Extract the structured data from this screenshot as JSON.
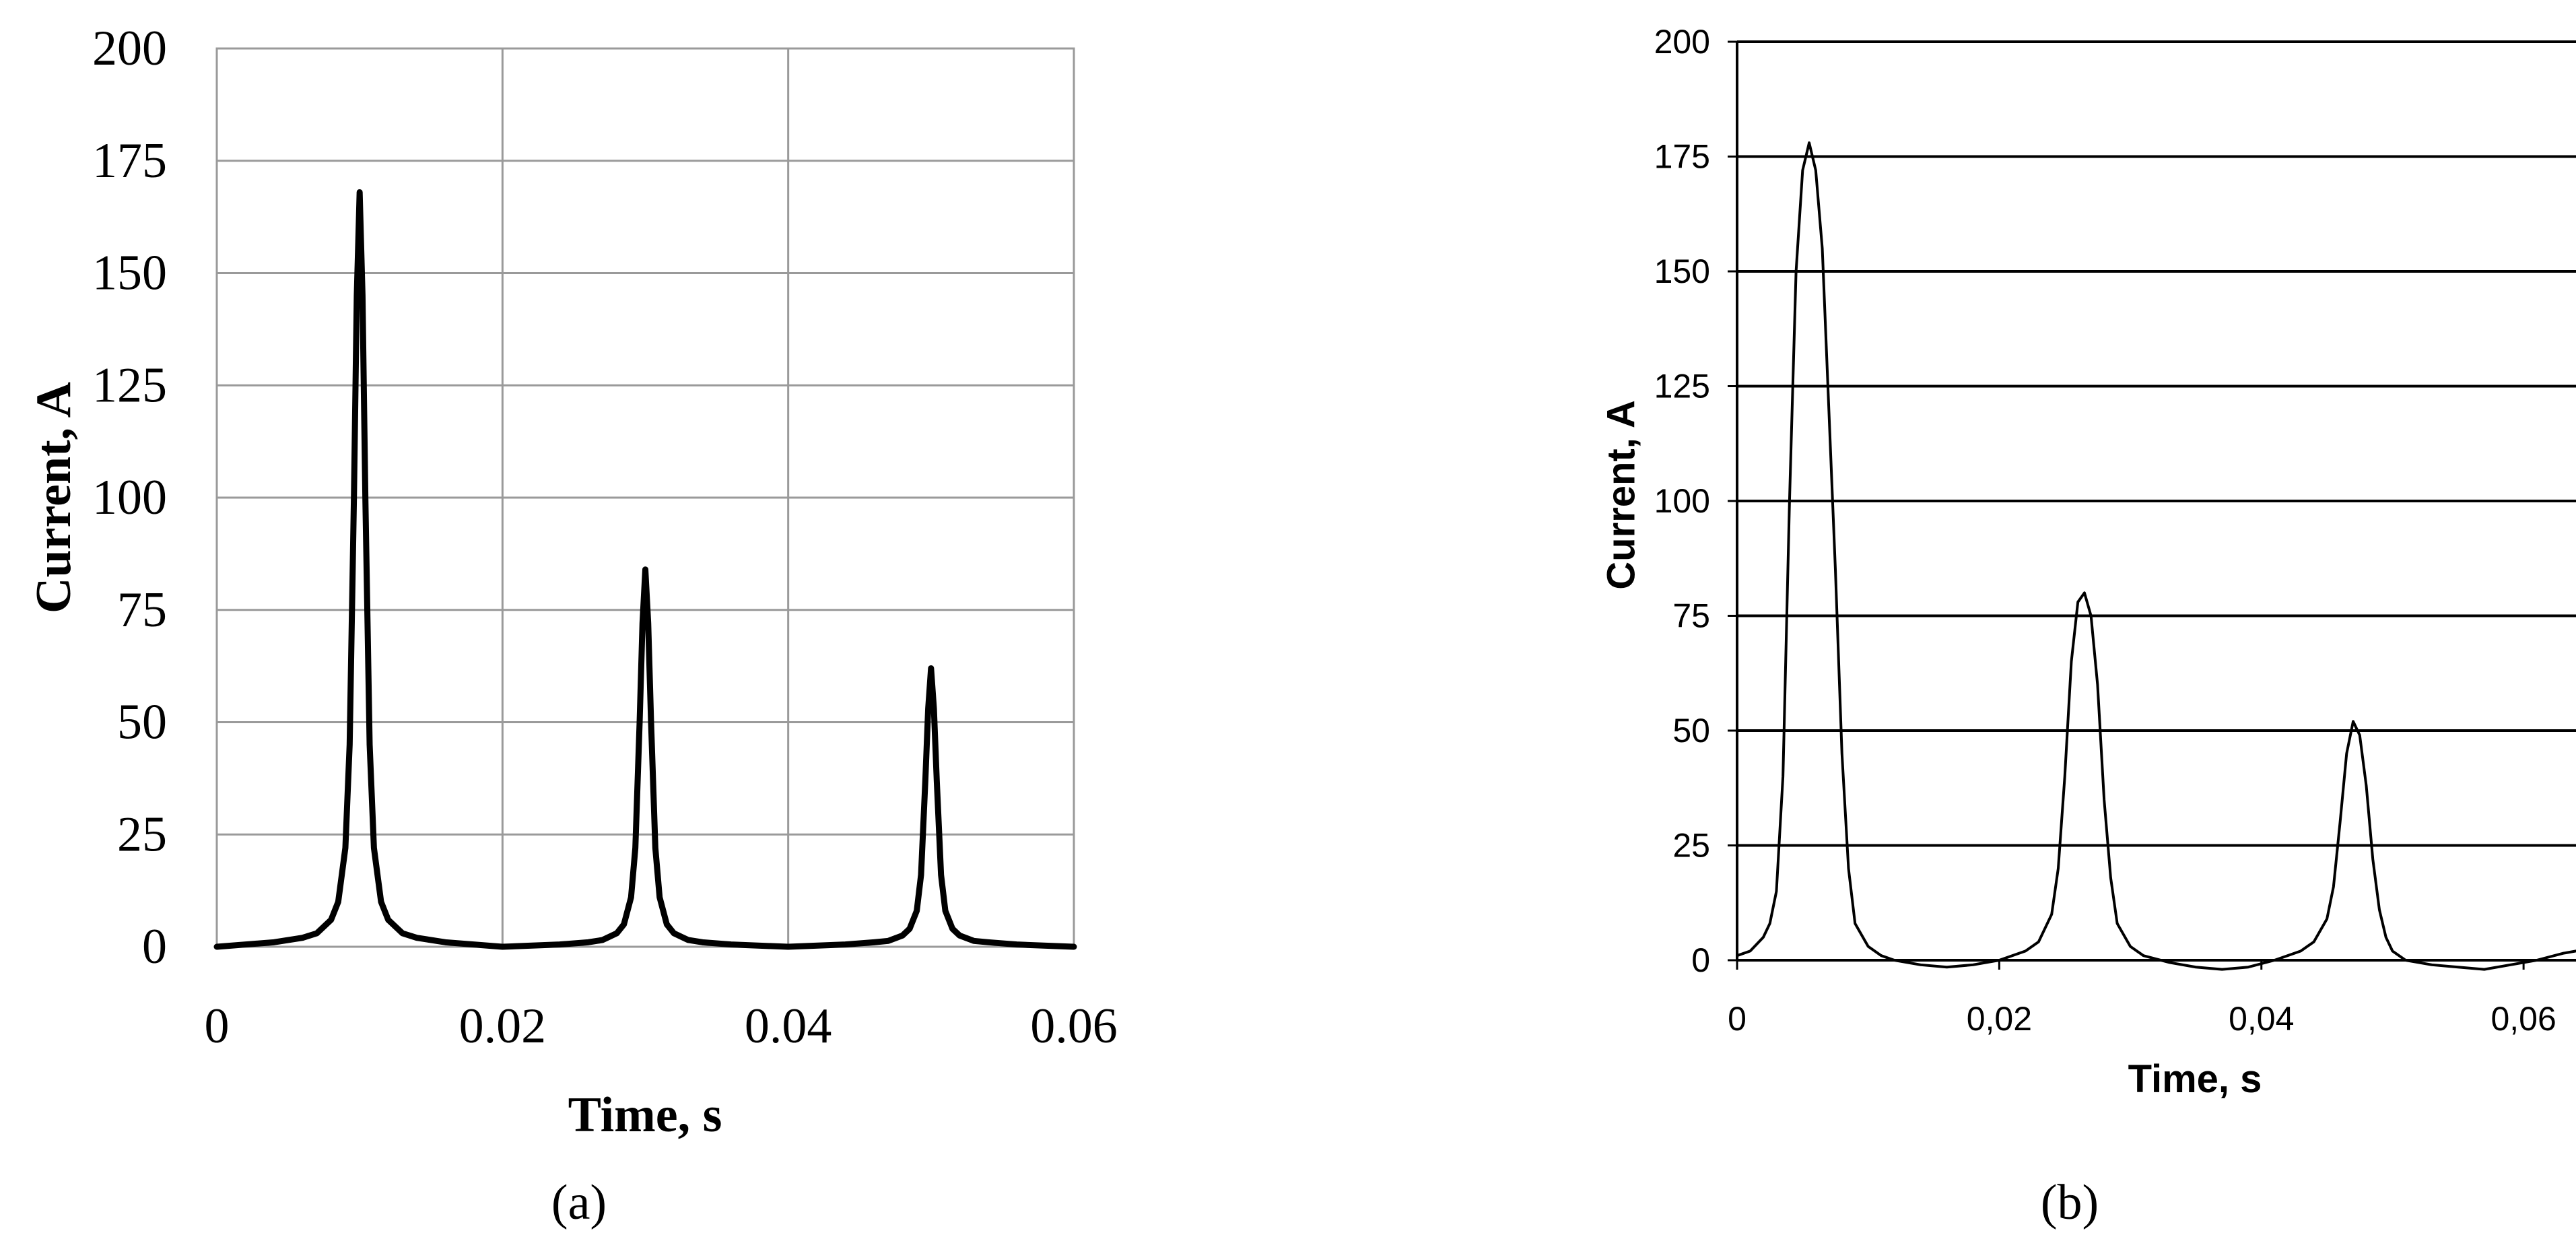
{
  "chart_data": [
    {
      "type": "line",
      "panel_label": "(a)",
      "xlabel": "Time, s",
      "ylabel": "Current, A",
      "xlim": [
        0,
        0.06
      ],
      "ylim": [
        0,
        200
      ],
      "x_ticks": [
        0,
        0.02,
        0.04,
        0.06
      ],
      "x_tick_labels": [
        "0",
        "0.02",
        "0.04",
        "0.06"
      ],
      "y_ticks": [
        0,
        25,
        50,
        75,
        100,
        125,
        150,
        175,
        200
      ],
      "y_tick_labels": [
        "0",
        "25",
        "50",
        "75",
        "100",
        "125",
        "150",
        "175",
        "200"
      ],
      "grid": "both",
      "series": [
        {
          "color": "#000000",
          "x": [
            0,
            0.004,
            0.006,
            0.007,
            0.008,
            0.0085,
            0.009,
            0.0093,
            0.0096,
            0.0098,
            0.01,
            0.0102,
            0.0104,
            0.0107,
            0.011,
            0.0115,
            0.012,
            0.013,
            0.014,
            0.016,
            0.02,
            0.024,
            0.026,
            0.027,
            0.028,
            0.0285,
            0.029,
            0.0293,
            0.0296,
            0.0298,
            0.03,
            0.0302,
            0.0304,
            0.0307,
            0.031,
            0.0315,
            0.032,
            0.033,
            0.034,
            0.036,
            0.04,
            0.044,
            0.046,
            0.047,
            0.048,
            0.0485,
            0.049,
            0.0493,
            0.0496,
            0.0498,
            0.05,
            0.0502,
            0.0504,
            0.0507,
            0.051,
            0.0515,
            0.052,
            0.053,
            0.054,
            0.056,
            0.06
          ],
          "y": [
            0,
            1,
            2,
            3,
            6,
            10,
            22,
            45,
            100,
            145,
            168,
            145,
            100,
            45,
            22,
            10,
            6,
            3,
            2,
            1,
            0,
            0.5,
            1,
            1.5,
            3,
            5,
            11,
            22,
            50,
            72,
            84,
            72,
            50,
            22,
            11,
            5,
            3,
            1.5,
            1,
            0.5,
            0,
            0.5,
            1,
            1.3,
            2.5,
            4,
            8,
            16,
            37,
            53,
            62,
            53,
            37,
            16,
            8,
            4,
            2.5,
            1.3,
            1,
            0.5,
            0
          ]
        }
      ]
    },
    {
      "type": "line",
      "panel_label": "(b)",
      "xlabel": "Time, s",
      "ylabel": "Current, A",
      "xlim": [
        0,
        0.064
      ],
      "ylim": [
        0,
        200
      ],
      "x_ticks": [
        0,
        0.02,
        0.04,
        0.06
      ],
      "x_tick_labels": [
        "0",
        "0,02",
        "0,04",
        "0,06"
      ],
      "y_ticks": [
        0,
        25,
        50,
        75,
        100,
        125,
        150,
        175,
        200
      ],
      "y_tick_labels": [
        "0",
        "25",
        "50",
        "75",
        "100",
        "125",
        "150",
        "175",
        "200"
      ],
      "grid": "horizontal",
      "series": [
        {
          "color": "#000000",
          "x": [
            0,
            0.001,
            0.002,
            0.0025,
            0.003,
            0.0035,
            0.004,
            0.0045,
            0.005,
            0.0055,
            0.006,
            0.0065,
            0.007,
            0.0075,
            0.008,
            0.0085,
            0.009,
            0.01,
            0.011,
            0.012,
            0.014,
            0.016,
            0.018,
            0.02,
            0.022,
            0.023,
            0.024,
            0.0245,
            0.025,
            0.0255,
            0.026,
            0.0265,
            0.027,
            0.0275,
            0.028,
            0.0285,
            0.029,
            0.03,
            0.031,
            0.033,
            0.035,
            0.037,
            0.039,
            0.041,
            0.043,
            0.044,
            0.045,
            0.0455,
            0.046,
            0.0465,
            0.047,
            0.0475,
            0.048,
            0.0485,
            0.049,
            0.0495,
            0.05,
            0.051,
            0.053,
            0.055,
            0.057,
            0.059,
            0.061,
            0.063,
            0.064
          ],
          "y": [
            1,
            2,
            5,
            8,
            15,
            40,
            100,
            150,
            172,
            178,
            172,
            155,
            120,
            85,
            45,
            20,
            8,
            3,
            1,
            0,
            -1,
            -1.5,
            -1,
            0,
            2,
            4,
            10,
            20,
            40,
            65,
            78,
            80,
            75,
            60,
            35,
            18,
            8,
            3,
            1,
            -0.5,
            -1.5,
            -2,
            -1.5,
            0,
            2,
            4,
            9,
            16,
            30,
            45,
            52,
            49,
            38,
            22,
            11,
            5,
            2,
            0,
            -1,
            -1.5,
            -2,
            -1,
            0,
            1.5,
            2
          ]
        }
      ]
    }
  ]
}
